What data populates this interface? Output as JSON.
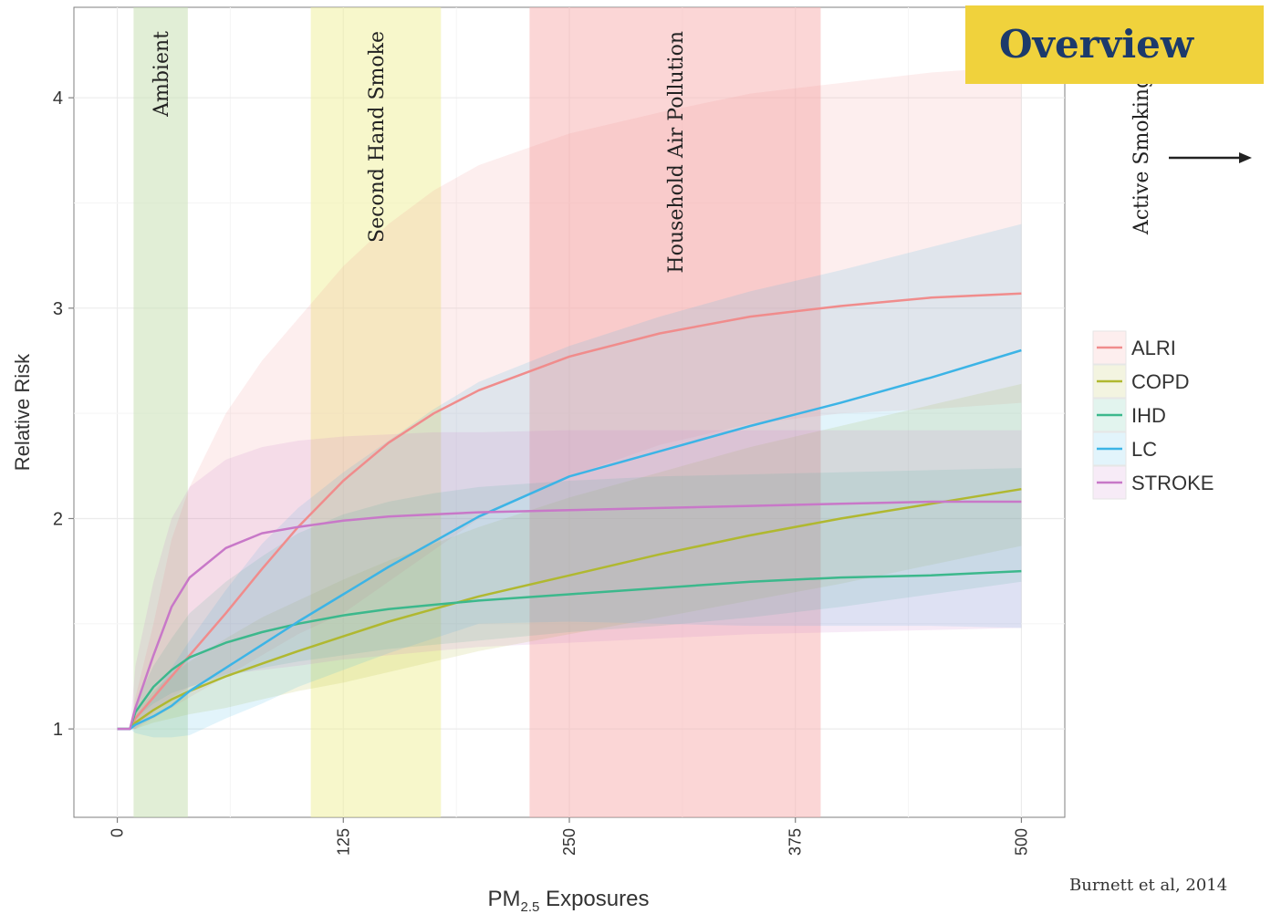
{
  "badge": {
    "label": "Overview"
  },
  "source_note": "Burnett et al, 2014",
  "chart_data": {
    "type": "line",
    "xlabel": "PM",
    "xlabel_sub": "2.5",
    "xlabel_suffix": " Exposures",
    "ylabel": "Relative Risk",
    "xlim": [
      -24,
      524
    ],
    "ylim": [
      0.58,
      4.43
    ],
    "xticks": [
      0,
      125,
      250,
      375,
      500
    ],
    "yticks": [
      1,
      2,
      3,
      4
    ],
    "grid": true,
    "legend_position": "right",
    "regions": [
      {
        "label": "Ambient",
        "x0": 9,
        "x1": 39,
        "color": "#c8e0b4"
      },
      {
        "label": "Second Hand Smoke",
        "x0": 107,
        "x1": 179,
        "color": "#f0f0a0"
      },
      {
        "label": "Household Air Pollution",
        "x0": 228,
        "x1": 389,
        "color": "#f8b4b4"
      }
    ],
    "annotation": {
      "label": "Active Smoking"
    },
    "series": [
      {
        "name": "ALRI",
        "color": "#f08c8c",
        "x": [
          0,
          5,
          7,
          10,
          20,
          30,
          40,
          60,
          80,
          100,
          125,
          150,
          175,
          200,
          250,
          300,
          350,
          400,
          450,
          500
        ],
        "values": [
          1,
          1,
          1,
          1.05,
          1.15,
          1.25,
          1.35,
          1.55,
          1.76,
          1.96,
          2.18,
          2.36,
          2.5,
          2.61,
          2.77,
          2.88,
          2.96,
          3.01,
          3.05,
          3.07
        ],
        "lower": [
          1,
          1,
          1,
          1.0,
          1.05,
          1.1,
          1.15,
          1.25,
          1.35,
          1.45,
          1.55,
          1.7,
          1.85,
          2.0,
          2.2,
          2.35,
          2.45,
          2.5,
          2.52,
          2.55
        ],
        "upper": [
          1,
          1,
          1,
          1.15,
          1.5,
          1.9,
          2.15,
          2.5,
          2.75,
          2.95,
          3.2,
          3.4,
          3.56,
          3.68,
          3.83,
          3.93,
          4.02,
          4.07,
          4.12,
          4.15
        ]
      },
      {
        "name": "COPD",
        "color": "#b0b830",
        "x": [
          0,
          5,
          7,
          10,
          20,
          30,
          40,
          60,
          80,
          100,
          125,
          150,
          175,
          200,
          250,
          300,
          350,
          400,
          450,
          500
        ],
        "values": [
          1,
          1,
          1,
          1.03,
          1.09,
          1.14,
          1.18,
          1.25,
          1.31,
          1.37,
          1.44,
          1.51,
          1.57,
          1.63,
          1.73,
          1.83,
          1.92,
          2.0,
          2.07,
          2.14
        ],
        "lower": [
          1,
          1,
          1,
          1.0,
          1.03,
          1.05,
          1.07,
          1.1,
          1.14,
          1.18,
          1.22,
          1.27,
          1.32,
          1.37,
          1.45,
          1.53,
          1.61,
          1.69,
          1.78,
          1.87
        ],
        "upper": [
          1,
          1,
          1,
          1.07,
          1.18,
          1.26,
          1.32,
          1.43,
          1.53,
          1.61,
          1.71,
          1.8,
          1.88,
          1.96,
          2.1,
          2.22,
          2.34,
          2.44,
          2.54,
          2.64
        ]
      },
      {
        "name": "IHD",
        "color": "#3cb88c",
        "x": [
          0,
          5,
          7,
          10,
          20,
          30,
          40,
          60,
          80,
          100,
          125,
          150,
          175,
          200,
          250,
          300,
          350,
          400,
          450,
          500
        ],
        "values": [
          1,
          1,
          1,
          1.08,
          1.2,
          1.28,
          1.34,
          1.41,
          1.46,
          1.5,
          1.54,
          1.57,
          1.59,
          1.61,
          1.64,
          1.67,
          1.7,
          1.72,
          1.73,
          1.75
        ],
        "lower": [
          1,
          1,
          1,
          1.05,
          1.12,
          1.17,
          1.2,
          1.25,
          1.29,
          1.32,
          1.35,
          1.38,
          1.4,
          1.42,
          1.46,
          1.49,
          1.53,
          1.58,
          1.64,
          1.7
        ],
        "upper": [
          1,
          1,
          1,
          1.12,
          1.3,
          1.43,
          1.55,
          1.7,
          1.82,
          1.93,
          2.02,
          2.08,
          2.12,
          2.15,
          2.18,
          2.2,
          2.21,
          2.22,
          2.23,
          2.24
        ]
      },
      {
        "name": "LC",
        "color": "#3cb4e6",
        "x": [
          0,
          5,
          7,
          10,
          20,
          30,
          40,
          60,
          80,
          100,
          125,
          150,
          175,
          200,
          250,
          300,
          350,
          400,
          450,
          500
        ],
        "values": [
          1,
          1,
          1,
          1.02,
          1.06,
          1.11,
          1.18,
          1.29,
          1.4,
          1.51,
          1.64,
          1.77,
          1.89,
          2.01,
          2.2,
          2.32,
          2.44,
          2.55,
          2.67,
          2.8
        ],
        "lower": [
          1,
          1,
          1,
          0.98,
          0.96,
          0.96,
          0.97,
          1.05,
          1.12,
          1.2,
          1.28,
          1.36,
          1.43,
          1.5,
          1.51,
          1.5,
          1.49,
          1.49,
          1.49,
          1.48
        ],
        "upper": [
          1,
          1,
          1,
          1.06,
          1.16,
          1.29,
          1.42,
          1.66,
          1.88,
          2.05,
          2.22,
          2.37,
          2.52,
          2.65,
          2.82,
          2.96,
          3.08,
          3.18,
          3.29,
          3.4
        ]
      },
      {
        "name": "STROKE",
        "color": "#c878c8",
        "x": [
          0,
          5,
          7,
          10,
          20,
          30,
          40,
          60,
          80,
          100,
          125,
          150,
          175,
          200,
          250,
          300,
          350,
          400,
          450,
          500
        ],
        "values": [
          1,
          1,
          1,
          1.1,
          1.35,
          1.58,
          1.72,
          1.86,
          1.93,
          1.96,
          1.99,
          2.01,
          2.02,
          2.03,
          2.04,
          2.05,
          2.06,
          2.07,
          2.08,
          2.08
        ],
        "lower": [
          1,
          1,
          1,
          1.0,
          1.08,
          1.15,
          1.2,
          1.26,
          1.28,
          1.3,
          1.33,
          1.35,
          1.37,
          1.39,
          1.41,
          1.43,
          1.45,
          1.46,
          1.47,
          1.48
        ],
        "upper": [
          1,
          1,
          1,
          1.3,
          1.7,
          2.0,
          2.15,
          2.28,
          2.34,
          2.37,
          2.39,
          2.4,
          2.41,
          2.41,
          2.42,
          2.42,
          2.42,
          2.42,
          2.42,
          2.42
        ]
      }
    ]
  }
}
